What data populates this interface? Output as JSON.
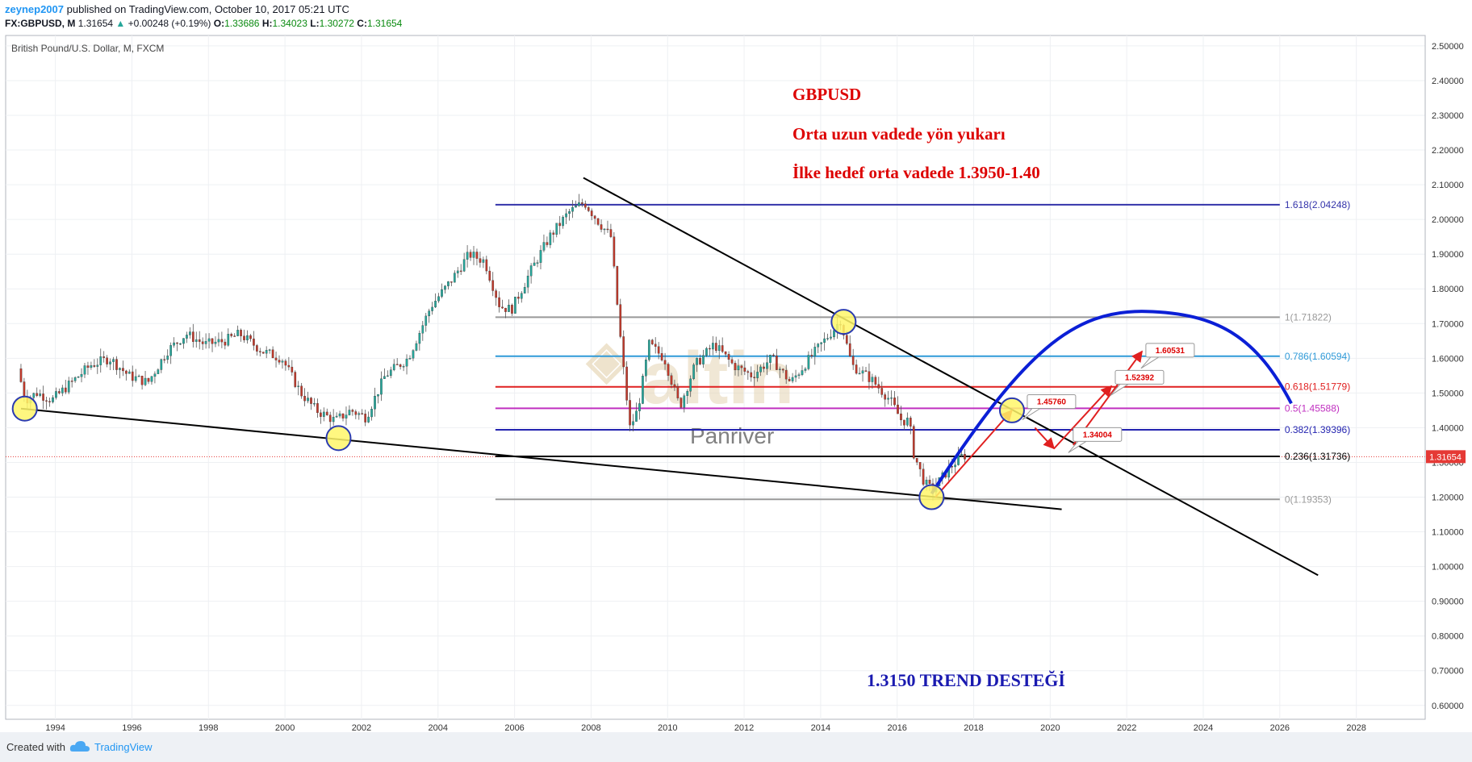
{
  "header": {
    "publisher": "zeynep2007",
    "published_text": "published on TradingView.com, October 10, 2017 05:21 UTC",
    "symbol": "FX:GBPUSD, M",
    "last": "1.31654",
    "change": "+0.00248 (+0.19%)",
    "open_label": "O:",
    "open": "1.33686",
    "high_label": "H:",
    "high": "1.34023",
    "low_label": "L:",
    "low": "1.30272",
    "close_label": "C:",
    "close": "1.31654"
  },
  "footer": {
    "created_with": "Created with",
    "brand": "TradingView"
  },
  "chart_data": {
    "type": "candlestick",
    "title": "British Pound/U.S. Dollar, M, FXCM",
    "x_ticks": [
      "1994",
      "1996",
      "1998",
      "2000",
      "2002",
      "2004",
      "2006",
      "2008",
      "2010",
      "2012",
      "2014",
      "2016",
      "2018",
      "2020",
      "2022",
      "2024",
      "2026",
      "2028"
    ],
    "y_ticks": [
      "2.50000",
      "2.40000",
      "2.30000",
      "2.20000",
      "2.10000",
      "2.00000",
      "1.90000",
      "1.80000",
      "1.70000",
      "1.60000",
      "1.50000",
      "1.40000",
      "1.30000",
      "1.20000",
      "1.10000",
      "1.00000",
      "0.90000",
      "0.80000",
      "0.70000",
      "0.60000"
    ],
    "xlim": [
      1992.7,
      2029.8
    ],
    "ylim": [
      0.56,
      2.53
    ],
    "last_price": "1.31654",
    "price_path": [
      [
        1993.1,
        1.57
      ],
      [
        1993.3,
        1.48
      ],
      [
        1993.6,
        1.5
      ],
      [
        1994.0,
        1.48
      ],
      [
        1994.5,
        1.53
      ],
      [
        1995.0,
        1.58
      ],
      [
        1995.5,
        1.6
      ],
      [
        1996.0,
        1.55
      ],
      [
        1996.5,
        1.53
      ],
      [
        1997.0,
        1.62
      ],
      [
        1997.5,
        1.67
      ],
      [
        1998.0,
        1.64
      ],
      [
        1998.5,
        1.65
      ],
      [
        1998.9,
        1.67
      ],
      [
        1999.5,
        1.62
      ],
      [
        2000.0,
        1.6
      ],
      [
        2000.5,
        1.5
      ],
      [
        2000.9,
        1.45
      ],
      [
        2001.4,
        1.42
      ],
      [
        2001.8,
        1.45
      ],
      [
        2002.2,
        1.43
      ],
      [
        2002.7,
        1.55
      ],
      [
        2003.3,
        1.6
      ],
      [
        2003.9,
        1.75
      ],
      [
        2004.4,
        1.82
      ],
      [
        2004.9,
        1.9
      ],
      [
        2005.3,
        1.88
      ],
      [
        2005.7,
        1.75
      ],
      [
        2006.0,
        1.74
      ],
      [
        2006.5,
        1.85
      ],
      [
        2007.0,
        1.95
      ],
      [
        2007.5,
        2.02
      ],
      [
        2007.9,
        2.05
      ],
      [
        2008.3,
        1.99
      ],
      [
        2008.6,
        1.95
      ],
      [
        2008.9,
        1.6
      ],
      [
        2009.1,
        1.4
      ],
      [
        2009.3,
        1.45
      ],
      [
        2009.6,
        1.64
      ],
      [
        2010.0,
        1.6
      ],
      [
        2010.4,
        1.46
      ],
      [
        2010.8,
        1.58
      ],
      [
        2011.3,
        1.64
      ],
      [
        2011.8,
        1.58
      ],
      [
        2012.3,
        1.55
      ],
      [
        2012.8,
        1.6
      ],
      [
        2013.3,
        1.53
      ],
      [
        2013.8,
        1.6
      ],
      [
        2014.4,
        1.68
      ],
      [
        2014.6,
        1.71
      ],
      [
        2014.9,
        1.58
      ],
      [
        2015.4,
        1.54
      ],
      [
        2015.9,
        1.48
      ],
      [
        2016.2,
        1.42
      ],
      [
        2016.4,
        1.42
      ],
      [
        2016.5,
        1.33
      ],
      [
        2016.8,
        1.24
      ],
      [
        2017.0,
        1.22
      ],
      [
        2017.5,
        1.29
      ],
      [
        2017.8,
        1.32
      ]
    ],
    "fib_levels": [
      {
        "label": "1.618(2.04248)",
        "value": 2.04248,
        "color": "#3333aa"
      },
      {
        "label": "1(1.71822)",
        "value": 1.71822,
        "color": "#999999"
      },
      {
        "label": "0.786(1.60594)",
        "value": 1.60594,
        "color": "#2f9ad8"
      },
      {
        "label": "0.618(1.51779)",
        "value": 1.51779,
        "color": "#e02020"
      },
      {
        "label": "0.5(1.45588)",
        "value": 1.45588,
        "color": "#c030c0"
      },
      {
        "label": "0.382(1.39396)",
        "value": 1.39396,
        "color": "#2323b0"
      },
      {
        "label": "0.236(1.31736)",
        "value": 1.31736,
        "color": "#000000"
      },
      {
        "label": "0(1.19353)",
        "value": 1.19353,
        "color": "#999999"
      }
    ],
    "fib_start_x": 2005.5,
    "fib_end_x": 2026.0,
    "trendlines": [
      {
        "from": [
          1993.1,
          1.455
        ],
        "to": [
          2020.3,
          1.165
        ]
      },
      {
        "from": [
          2007.8,
          2.12
        ],
        "to": [
          2027.0,
          0.975
        ]
      }
    ],
    "circles": [
      [
        1993.2,
        1.455
      ],
      [
        2001.4,
        1.37
      ],
      [
        2014.6,
        1.705
      ],
      [
        2016.9,
        1.2
      ],
      [
        2019.0,
        1.45
      ]
    ],
    "projection": {
      "arc": [
        [
          2016.9,
          1.21
        ],
        [
          2019.3,
          1.5
        ],
        [
          2022.5,
          1.735
        ],
        [
          2026.3,
          1.47
        ]
      ],
      "arrows": [
        {
          "from": [
            2017.0,
            1.2
          ],
          "to": [
            2019.0,
            1.45
          ]
        },
        {
          "from": [
            2019.6,
            1.4
          ],
          "to": [
            2020.1,
            1.34
          ]
        },
        {
          "from": [
            2020.1,
            1.34
          ],
          "to": [
            2021.6,
            1.52
          ]
        },
        {
          "from": [
            2020.6,
            1.35
          ],
          "to": [
            2022.4,
            1.62
          ]
        }
      ],
      "callouts": [
        {
          "text": "1.45760",
          "x": 2019.4,
          "y": 1.495
        },
        {
          "text": "1.34004",
          "x": 2020.6,
          "y": 1.4
        },
        {
          "text": "1.52392",
          "x": 2021.7,
          "y": 1.565
        },
        {
          "text": "1.60531",
          "x": 2022.5,
          "y": 1.643
        }
      ]
    },
    "annotations": {
      "line1": "GBPUSD",
      "line2": "Orta uzun vadede yön yukarı",
      "line3": "İlke hedef orta vadede 1.3950-1.40",
      "trend_support": "1.3150 TREND DESTEĞİ"
    },
    "watermark": {
      "brand": "altin",
      "sub": "Panriver"
    },
    "colors": {
      "up": "#26a69a",
      "down": "#c0392b",
      "annotation": "#dd0000",
      "trend_support": "#1a1ab0",
      "projection": "#0b1fd6",
      "arrows": "#e02020"
    }
  }
}
